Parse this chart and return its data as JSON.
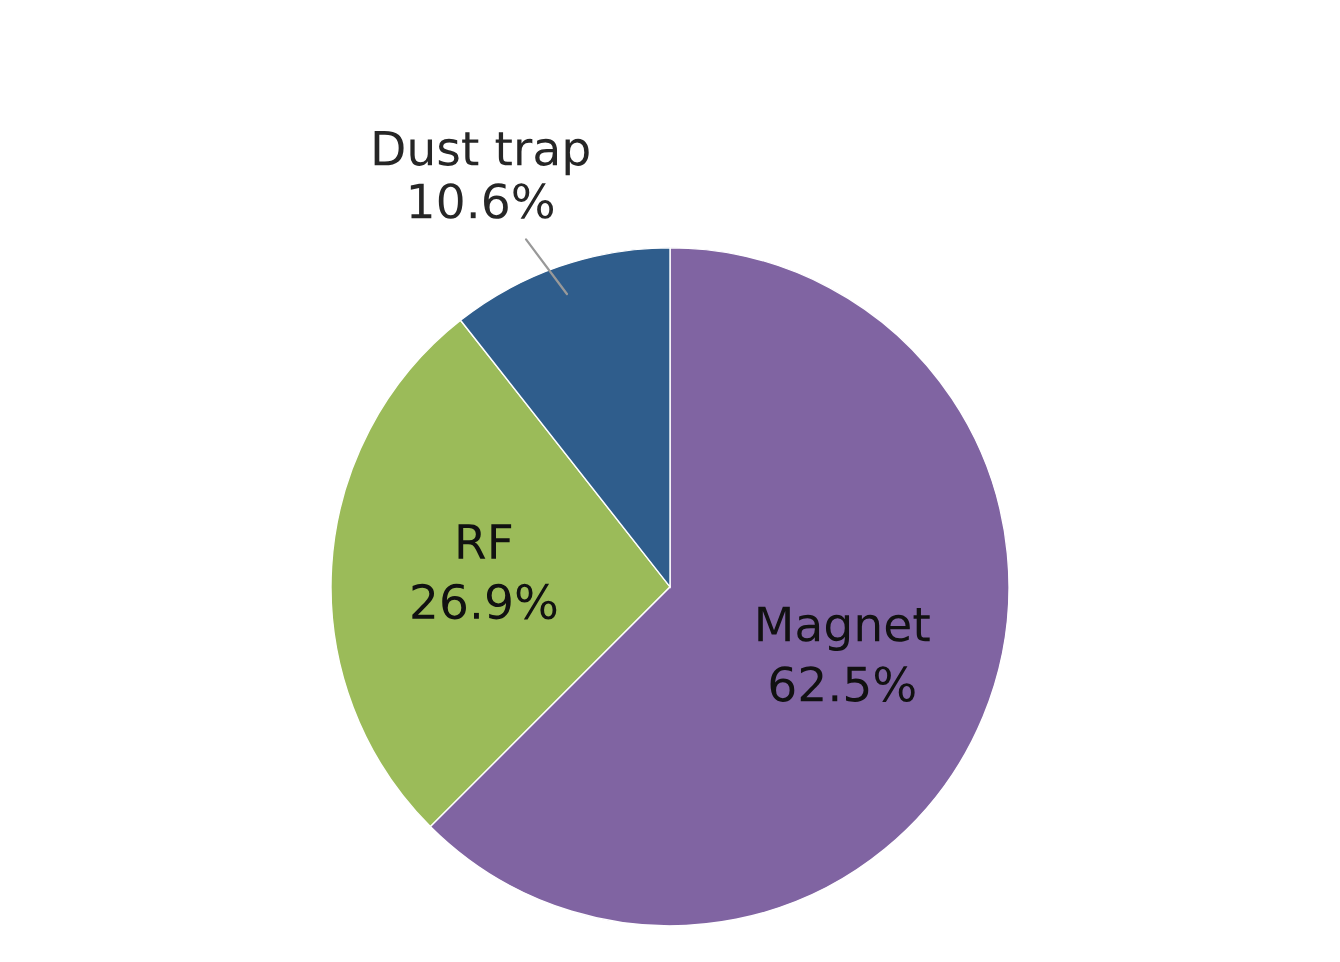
{
  "chart_data": {
    "type": "pie",
    "categories": [
      "Magnet",
      "RF",
      "Dust trap"
    ],
    "values": [
      62.5,
      26.9,
      10.6
    ],
    "colors": [
      "#8064a2",
      "#9bbb59",
      "#2f5d8c"
    ],
    "value_labels": [
      "62.5%",
      "26.9%",
      "10.6%"
    ]
  }
}
